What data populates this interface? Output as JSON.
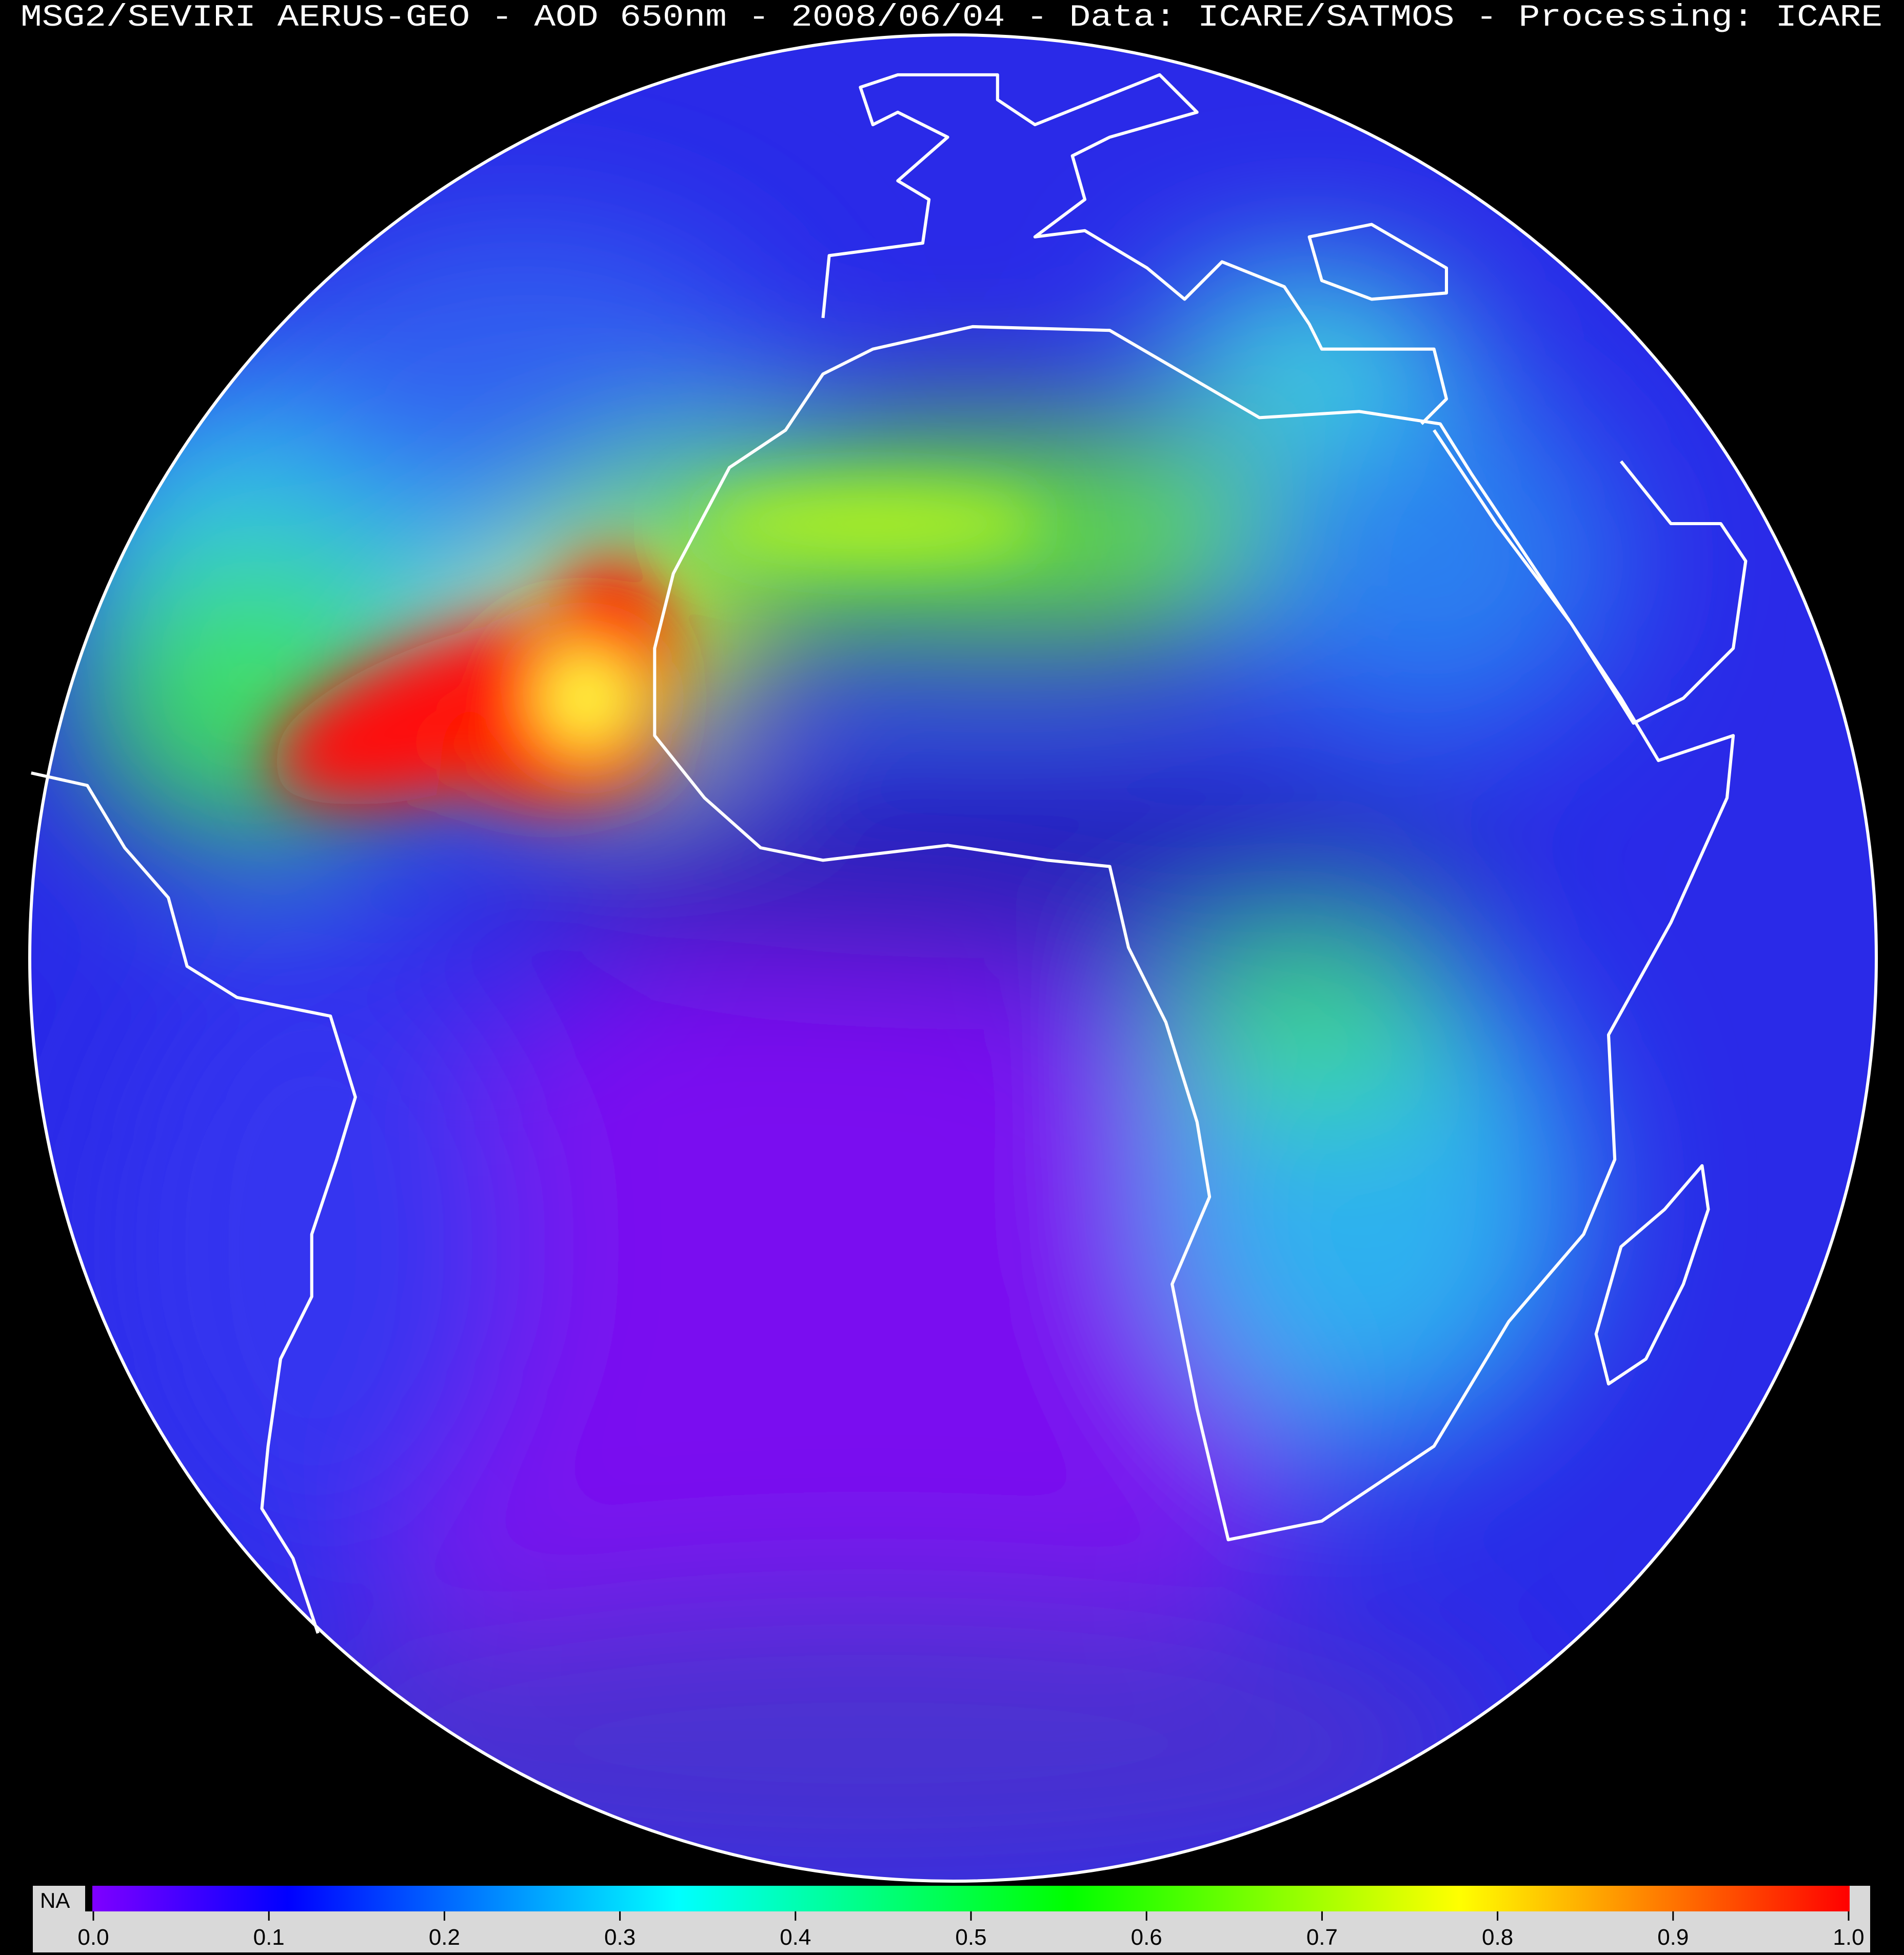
{
  "title": "MSG2/SEVIRI AERUS-GEO - AOD 650nm - 2008/06/04 - Data: ICARE/SATMOS - Processing: ICARE",
  "colorbar": {
    "na_label": "NA",
    "na_color": "#000000",
    "range": [
      0.0,
      1.0
    ],
    "tick_labels": [
      "0.0",
      "0.1",
      "0.2",
      "0.3",
      "0.4",
      "0.5",
      "0.6",
      "0.7",
      "0.8",
      "0.9",
      "1.0"
    ],
    "colormap": [
      "#7f00ff",
      "#0000ff",
      "#0080ff",
      "#00ffff",
      "#00ff80",
      "#00ff00",
      "#80ff00",
      "#ffff00",
      "#ff8000",
      "#ff0000"
    ],
    "background": "#d9d9d9"
  },
  "map": {
    "projection": "geostationary full disk",
    "coastline_color": "#ffffff",
    "background": "#000000"
  }
}
